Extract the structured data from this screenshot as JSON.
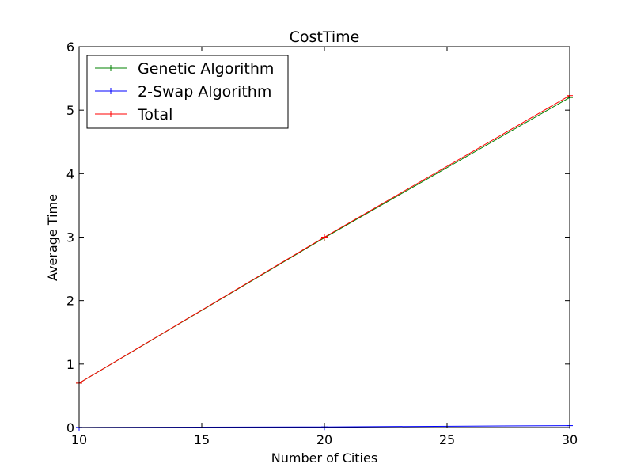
{
  "chart_data": {
    "type": "line",
    "title": "CostTime",
    "xlabel": "Number of Cities",
    "ylabel": "Average Time",
    "xlim": [
      10,
      30
    ],
    "ylim": [
      0,
      6
    ],
    "xticks": [
      10,
      15,
      20,
      25,
      30
    ],
    "yticks": [
      0,
      1,
      2,
      3,
      4,
      5,
      6
    ],
    "x": [
      10,
      20,
      30
    ],
    "grid": false,
    "legend_position": "top-left",
    "marker": "+",
    "series": [
      {
        "name": "Genetic Algorithm",
        "color": "#008000",
        "values": [
          0.7,
          2.99,
          5.2
        ]
      },
      {
        "name": "2-Swap Algorithm",
        "color": "#0000ff",
        "values": [
          0.002,
          0.01,
          0.03
        ]
      },
      {
        "name": "Total",
        "color": "#ff0000",
        "values": [
          0.7,
          3.0,
          5.23
        ]
      }
    ]
  }
}
